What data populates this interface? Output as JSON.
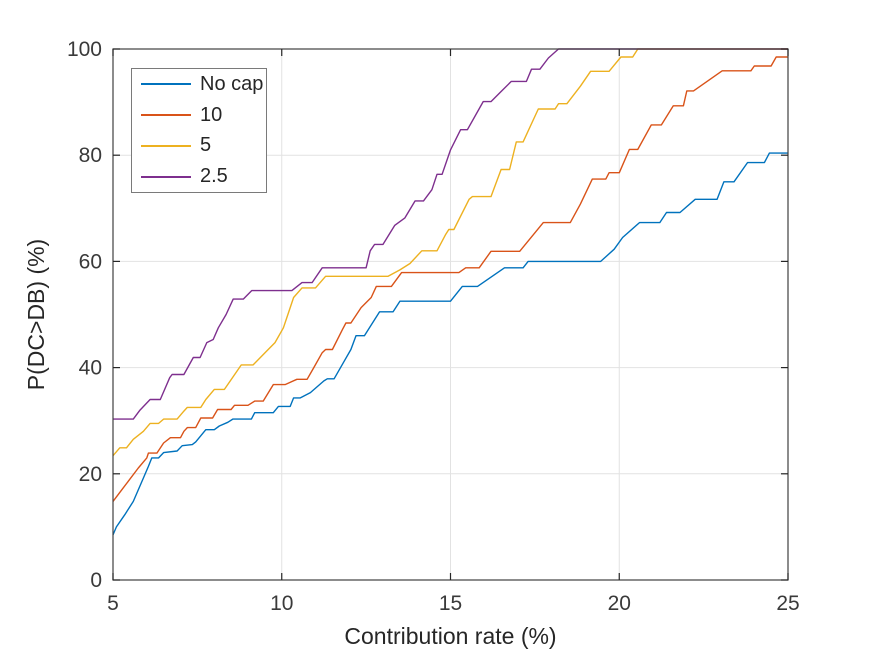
{
  "figure_title": "",
  "chart_data": {
    "type": "line",
    "subtype": "empirical-cdf-staircase",
    "title": "",
    "xlabel": "Contribution rate (%)",
    "ylabel": "P(DC>DB) (%)",
    "xlim": [
      5,
      25
    ],
    "ylim": [
      0,
      100
    ],
    "x_ticks": [
      5,
      10,
      15,
      20,
      25
    ],
    "y_ticks": [
      0,
      20,
      40,
      60,
      80,
      100
    ],
    "grid": true,
    "legend_position": "top-left",
    "colors": {
      "grid": "#e2e2e2",
      "axis_box": "#3f3f3f",
      "tick": "#262626",
      "tick_label": "#3a3a3a",
      "axis_label": "#262626",
      "legend_border": "#7a7a7a"
    },
    "series": [
      {
        "name": "No cap",
        "color": "#0072BD",
        "points": [
          [
            5,
            8.5
          ],
          [
            5.1,
            10
          ],
          [
            5.35,
            12.3
          ],
          [
            5.6,
            14.8
          ],
          [
            5.9,
            19.2
          ],
          [
            6.05,
            21.4
          ],
          [
            6.15,
            23
          ],
          [
            6.35,
            23
          ],
          [
            6.5,
            24
          ],
          [
            6.9,
            24.3
          ],
          [
            7.05,
            25.3
          ],
          [
            7.35,
            25.5
          ],
          [
            7.45,
            26
          ],
          [
            7.75,
            28.3
          ],
          [
            8,
            28.3
          ],
          [
            8.15,
            29
          ],
          [
            8.4,
            29.7
          ],
          [
            8.55,
            30.3
          ],
          [
            9.1,
            30.3
          ],
          [
            9.2,
            31.5
          ],
          [
            9.75,
            31.5
          ],
          [
            9.9,
            32.7
          ],
          [
            10.25,
            32.7
          ],
          [
            10.35,
            34.3
          ],
          [
            10.55,
            34.3
          ],
          [
            10.85,
            35.3
          ],
          [
            11.25,
            37.5
          ],
          [
            11.35,
            37.9
          ],
          [
            11.55,
            37.9
          ],
          [
            11.85,
            41.2
          ],
          [
            12.05,
            43.4
          ],
          [
            12.2,
            46
          ],
          [
            12.45,
            46
          ],
          [
            12.9,
            50.5
          ],
          [
            13.3,
            50.5
          ],
          [
            13.5,
            52.5
          ],
          [
            15,
            52.5
          ],
          [
            15.35,
            55.3
          ],
          [
            15.8,
            55.3
          ],
          [
            16.6,
            58.8
          ],
          [
            17.15,
            58.8
          ],
          [
            17.3,
            60
          ],
          [
            19.45,
            60
          ],
          [
            19.85,
            62.3
          ],
          [
            20.1,
            64.5
          ],
          [
            20.6,
            67.3
          ],
          [
            21.2,
            67.3
          ],
          [
            21.4,
            69.2
          ],
          [
            21.8,
            69.2
          ],
          [
            22.25,
            71.7
          ],
          [
            22.9,
            71.7
          ],
          [
            23.1,
            75
          ],
          [
            23.4,
            75
          ],
          [
            23.8,
            78.6
          ],
          [
            24.3,
            78.6
          ],
          [
            24.45,
            80.4
          ],
          [
            25,
            80.4
          ]
        ]
      },
      {
        "name": "10",
        "color": "#D95319",
        "points": [
          [
            5,
            14.8
          ],
          [
            5.3,
            17.3
          ],
          [
            5.75,
            21.1
          ],
          [
            6,
            23
          ],
          [
            6.05,
            23.9
          ],
          [
            6.3,
            23.9
          ],
          [
            6.5,
            25.8
          ],
          [
            6.7,
            26.8
          ],
          [
            7,
            26.8
          ],
          [
            7.1,
            28
          ],
          [
            7.2,
            28.7
          ],
          [
            7.45,
            28.7
          ],
          [
            7.6,
            30.5
          ],
          [
            7.95,
            30.5
          ],
          [
            8.1,
            32.1
          ],
          [
            8.5,
            32.1
          ],
          [
            8.6,
            32.9
          ],
          [
            9,
            32.9
          ],
          [
            9.2,
            33.7
          ],
          [
            9.45,
            33.7
          ],
          [
            9.75,
            36.8
          ],
          [
            10.1,
            36.8
          ],
          [
            10.45,
            37.8
          ],
          [
            10.75,
            37.8
          ],
          [
            10.95,
            40
          ],
          [
            11.2,
            42.8
          ],
          [
            11.3,
            43.4
          ],
          [
            11.5,
            43.4
          ],
          [
            11.8,
            47.2
          ],
          [
            11.9,
            48.4
          ],
          [
            12.05,
            48.4
          ],
          [
            12.35,
            51.3
          ],
          [
            12.65,
            53.2
          ],
          [
            12.8,
            55.3
          ],
          [
            13.25,
            55.3
          ],
          [
            13.55,
            57.9
          ],
          [
            15.25,
            57.9
          ],
          [
            15.45,
            58.8
          ],
          [
            15.85,
            58.8
          ],
          [
            16.2,
            61.9
          ],
          [
            17.05,
            61.9
          ],
          [
            17.75,
            67.3
          ],
          [
            18.55,
            67.3
          ],
          [
            18.85,
            70.8
          ],
          [
            19.2,
            75.5
          ],
          [
            19.6,
            75.5
          ],
          [
            19.7,
            76.7
          ],
          [
            20,
            76.7
          ],
          [
            20.3,
            81.1
          ],
          [
            20.55,
            81.1
          ],
          [
            20.95,
            85.7
          ],
          [
            21.25,
            85.7
          ],
          [
            21.6,
            89.3
          ],
          [
            21.9,
            89.3
          ],
          [
            22,
            92.1
          ],
          [
            22.2,
            92.1
          ],
          [
            23.05,
            95.9
          ],
          [
            23.9,
            95.9
          ],
          [
            24,
            96.8
          ],
          [
            24.5,
            96.8
          ],
          [
            24.65,
            98.5
          ],
          [
            25,
            98.5
          ]
        ]
      },
      {
        "name": "5",
        "color": "#EDB120",
        "points": [
          [
            5,
            23.4
          ],
          [
            5.2,
            24.9
          ],
          [
            5.4,
            24.9
          ],
          [
            5.6,
            26.5
          ],
          [
            5.9,
            28
          ],
          [
            6.1,
            29.5
          ],
          [
            6.35,
            29.5
          ],
          [
            6.5,
            30.3
          ],
          [
            6.9,
            30.3
          ],
          [
            7.1,
            31.8
          ],
          [
            7.2,
            32.5
          ],
          [
            7.6,
            32.5
          ],
          [
            7.75,
            34
          ],
          [
            8,
            35.9
          ],
          [
            8.3,
            35.9
          ],
          [
            8.8,
            40.5
          ],
          [
            9.15,
            40.5
          ],
          [
            9.55,
            43.1
          ],
          [
            9.8,
            44.7
          ],
          [
            10.05,
            47.5
          ],
          [
            10.25,
            51.3
          ],
          [
            10.35,
            53.2
          ],
          [
            10.6,
            55
          ],
          [
            11,
            55
          ],
          [
            11.3,
            57.2
          ],
          [
            13.15,
            57.2
          ],
          [
            13.5,
            58.4
          ],
          [
            13.8,
            59.6
          ],
          [
            14.15,
            62
          ],
          [
            14.6,
            62
          ],
          [
            14.85,
            65
          ],
          [
            14.95,
            66
          ],
          [
            15.1,
            66
          ],
          [
            15.55,
            71.7
          ],
          [
            15.65,
            72.2
          ],
          [
            16.2,
            72.2
          ],
          [
            16.5,
            77.3
          ],
          [
            16.75,
            77.3
          ],
          [
            16.95,
            82.5
          ],
          [
            17.15,
            82.5
          ],
          [
            17.6,
            88.7
          ],
          [
            18.1,
            88.7
          ],
          [
            18.2,
            89.7
          ],
          [
            18.45,
            89.7
          ],
          [
            18.85,
            93
          ],
          [
            19.15,
            95.8
          ],
          [
            19.7,
            95.8
          ],
          [
            20.05,
            98.5
          ],
          [
            20.4,
            98.5
          ],
          [
            20.55,
            100
          ],
          [
            25,
            100
          ]
        ]
      },
      {
        "name": "2.5",
        "color": "#7E2F8E",
        "points": [
          [
            5,
            30.3
          ],
          [
            5.6,
            30.3
          ],
          [
            5.8,
            32
          ],
          [
            6.1,
            34
          ],
          [
            6.4,
            34
          ],
          [
            6.68,
            38.1
          ],
          [
            6.75,
            38.7
          ],
          [
            7.1,
            38.7
          ],
          [
            7.38,
            41.9
          ],
          [
            7.58,
            41.9
          ],
          [
            7.78,
            44.7
          ],
          [
            7.97,
            45.3
          ],
          [
            8.12,
            47.5
          ],
          [
            8.35,
            50
          ],
          [
            8.56,
            52.9
          ],
          [
            8.86,
            52.9
          ],
          [
            9.11,
            54.5
          ],
          [
            10.3,
            54.5
          ],
          [
            10.6,
            56
          ],
          [
            10.9,
            56
          ],
          [
            11.2,
            58.8
          ],
          [
            12.5,
            58.8
          ],
          [
            12.62,
            62
          ],
          [
            12.75,
            63.2
          ],
          [
            13,
            63.2
          ],
          [
            13.35,
            66.8
          ],
          [
            13.65,
            68.2
          ],
          [
            13.95,
            71.4
          ],
          [
            14.2,
            71.4
          ],
          [
            14.45,
            73.5
          ],
          [
            14.6,
            76.4
          ],
          [
            14.75,
            76.4
          ],
          [
            15,
            81
          ],
          [
            15.3,
            84.8
          ],
          [
            15.5,
            84.8
          ],
          [
            15.97,
            90.1
          ],
          [
            16.2,
            90.1
          ],
          [
            16.5,
            92
          ],
          [
            16.8,
            93.9
          ],
          [
            17.25,
            93.9
          ],
          [
            17.4,
            96.2
          ],
          [
            17.65,
            96.2
          ],
          [
            17.9,
            98.3
          ],
          [
            18.2,
            100
          ],
          [
            25,
            100
          ]
        ]
      }
    ]
  }
}
